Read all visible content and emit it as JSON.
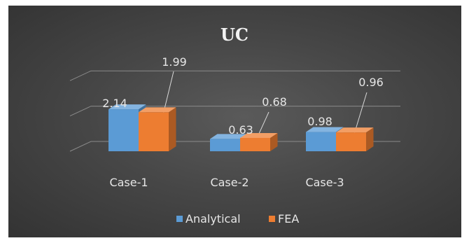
{
  "chart_data": {
    "type": "bar",
    "title": "UC",
    "categories": [
      "Case-1",
      "Case-2",
      "Case-3"
    ],
    "series": [
      {
        "name": "Analytical",
        "values": [
          2.14,
          0.63,
          0.98
        ],
        "color": "#5b9bd5"
      },
      {
        "name": "FEA",
        "values": [
          1.99,
          0.68,
          0.96
        ],
        "color": "#ed7d31"
      }
    ],
    "data_labels": [
      [
        "2.14",
        "0.63",
        "0.98"
      ],
      [
        "1.99",
        "0.68",
        "0.96"
      ]
    ],
    "legend_position": "bottom",
    "three_d": true,
    "grid": true,
    "background": "#474747"
  }
}
